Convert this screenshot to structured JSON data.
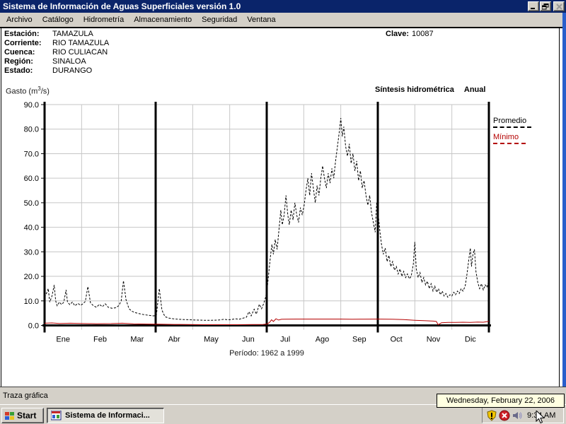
{
  "window": {
    "title": "Sistema de Información de Aguas Superficiales  versión 1.0"
  },
  "menu": {
    "items": [
      {
        "label": "Archivo"
      },
      {
        "label": "Catálogo"
      },
      {
        "label": "Hidrometría"
      },
      {
        "label": "Almacenamiento"
      },
      {
        "label": "Seguridad"
      },
      {
        "label": "Ventana"
      }
    ]
  },
  "station": {
    "fields": [
      {
        "label": "Estación:",
        "value": "TAMAZULA"
      },
      {
        "label": "Corriente:",
        "value": "RIO TAMAZULA"
      },
      {
        "label": "Cuenca:",
        "value": "RIO CULIACAN"
      },
      {
        "label": "Región:",
        "value": "SINALOA"
      },
      {
        "label": "Estado:",
        "value": "DURANGO"
      }
    ],
    "clave_label": "Clave:",
    "clave_value": "10087"
  },
  "chart_header": {
    "unit_prefix": "Gasto (m",
    "unit_sup": "3",
    "unit_suffix": "/s)",
    "synthesis": "Síntesis hidrométrica",
    "period_type": "Anual"
  },
  "legend": {
    "promedio": "Promedio",
    "minimo": "Mínimo"
  },
  "caption": "Período: 1962 a 1999",
  "chart_data": {
    "type": "line",
    "title": "Síntesis hidrométrica Anual",
    "ylabel": "Gasto (m3/s)",
    "ylim": [
      0,
      90
    ],
    "ytick_labels": [
      "0.0",
      "10.0",
      "20.0",
      "30.0",
      "40.0",
      "50.0",
      "60.0",
      "70.0",
      "80.0",
      "90.0"
    ],
    "categories": [
      "Ene",
      "Feb",
      "Mar",
      "Abr",
      "May",
      "Jun",
      "Jul",
      "Ago",
      "Sep",
      "Oct",
      "Nov",
      "Dic"
    ],
    "quarter_separators_after_month": [
      3,
      6,
      9
    ],
    "grid": true,
    "legend_position": "right",
    "colors": {
      "promedio": "#000000",
      "minimo": "#b40000",
      "grid": "#c6c6c6",
      "axis": "#000000"
    },
    "series": [
      {
        "name": "Promedio",
        "style": "dashed",
        "color": "#000000",
        "points": [
          [
            0.0,
            11.5
          ],
          [
            0.05,
            13
          ],
          [
            0.1,
            15
          ],
          [
            0.14,
            9.5
          ],
          [
            0.2,
            12
          ],
          [
            0.26,
            16.5
          ],
          [
            0.3,
            10
          ],
          [
            0.34,
            8
          ],
          [
            0.4,
            9.5
          ],
          [
            0.46,
            8.5
          ],
          [
            0.52,
            9.5
          ],
          [
            0.58,
            14.5
          ],
          [
            0.62,
            9.5
          ],
          [
            0.68,
            8.5
          ],
          [
            0.75,
            9.5
          ],
          [
            0.82,
            8
          ],
          [
            0.9,
            9
          ],
          [
            0.97,
            8.2
          ],
          [
            1.04,
            8.8
          ],
          [
            1.1,
            9.8
          ],
          [
            1.17,
            15.8
          ],
          [
            1.24,
            9.2
          ],
          [
            1.32,
            8
          ],
          [
            1.4,
            7.4
          ],
          [
            1.48,
            8.6
          ],
          [
            1.56,
            7.6
          ],
          [
            1.64,
            8.8
          ],
          [
            1.72,
            7.4
          ],
          [
            1.82,
            7
          ],
          [
            1.92,
            7.2
          ],
          [
            2.0,
            8
          ],
          [
            2.07,
            10
          ],
          [
            2.13,
            18.2
          ],
          [
            2.2,
            10.5
          ],
          [
            2.28,
            6.8
          ],
          [
            2.36,
            5.8
          ],
          [
            2.45,
            5.2
          ],
          [
            2.55,
            4.8
          ],
          [
            2.68,
            4.4
          ],
          [
            2.82,
            4.1
          ],
          [
            2.95,
            3.9
          ],
          [
            3.02,
            4.1
          ],
          [
            3.1,
            15
          ],
          [
            3.17,
            6.2
          ],
          [
            3.25,
            3.6
          ],
          [
            3.35,
            3
          ],
          [
            3.48,
            2.7
          ],
          [
            3.62,
            2.5
          ],
          [
            3.78,
            2.4
          ],
          [
            3.92,
            2.3
          ],
          [
            4.1,
            2.2
          ],
          [
            4.3,
            2.1
          ],
          [
            4.5,
            2.1
          ],
          [
            4.7,
            2.2
          ],
          [
            4.85,
            2.5
          ],
          [
            4.95,
            2.3
          ],
          [
            5.05,
            2.4
          ],
          [
            5.15,
            2.7
          ],
          [
            5.25,
            2.5
          ],
          [
            5.35,
            2.9
          ],
          [
            5.45,
            3.3
          ],
          [
            5.52,
            5.6
          ],
          [
            5.58,
            3.9
          ],
          [
            5.66,
            6.6
          ],
          [
            5.72,
            4.6
          ],
          [
            5.8,
            8.6
          ],
          [
            5.86,
            6.8
          ],
          [
            5.92,
            9
          ],
          [
            5.97,
            11.5
          ],
          [
            6.02,
            16
          ],
          [
            6.06,
            22
          ],
          [
            6.1,
            28
          ],
          [
            6.14,
            33
          ],
          [
            6.18,
            29
          ],
          [
            6.23,
            35
          ],
          [
            6.28,
            31
          ],
          [
            6.33,
            39
          ],
          [
            6.38,
            47
          ],
          [
            6.42,
            41
          ],
          [
            6.47,
            45
          ],
          [
            6.52,
            53
          ],
          [
            6.57,
            45
          ],
          [
            6.61,
            41
          ],
          [
            6.66,
            47
          ],
          [
            6.71,
            43
          ],
          [
            6.76,
            50
          ],
          [
            6.81,
            45
          ],
          [
            6.86,
            42
          ],
          [
            6.91,
            48
          ],
          [
            6.96,
            45
          ],
          [
            7.01,
            49
          ],
          [
            7.06,
            55
          ],
          [
            7.11,
            60
          ],
          [
            7.16,
            53
          ],
          [
            7.21,
            62
          ],
          [
            7.26,
            56
          ],
          [
            7.31,
            50
          ],
          [
            7.36,
            57
          ],
          [
            7.41,
            53
          ],
          [
            7.46,
            60
          ],
          [
            7.51,
            65
          ],
          [
            7.56,
            60
          ],
          [
            7.61,
            56
          ],
          [
            7.66,
            62
          ],
          [
            7.71,
            58
          ],
          [
            7.76,
            64
          ],
          [
            7.81,
            60
          ],
          [
            7.86,
            67
          ],
          [
            7.91,
            73
          ],
          [
            7.96,
            79
          ],
          [
            8.0,
            84.5
          ],
          [
            8.04,
            77
          ],
          [
            8.08,
            81
          ],
          [
            8.13,
            73
          ],
          [
            8.18,
            69
          ],
          [
            8.23,
            74
          ],
          [
            8.28,
            66
          ],
          [
            8.33,
            70
          ],
          [
            8.38,
            63
          ],
          [
            8.43,
            67
          ],
          [
            8.48,
            59
          ],
          [
            8.53,
            63
          ],
          [
            8.58,
            56
          ],
          [
            8.63,
            59
          ],
          [
            8.68,
            53
          ],
          [
            8.73,
            49
          ],
          [
            8.78,
            53
          ],
          [
            8.83,
            46
          ],
          [
            8.88,
            42
          ],
          [
            8.93,
            38
          ],
          [
            8.97,
            50
          ],
          [
            9.02,
            44
          ],
          [
            9.06,
            38
          ],
          [
            9.1,
            33
          ],
          [
            9.15,
            29
          ],
          [
            9.2,
            31.5
          ],
          [
            9.25,
            26
          ],
          [
            9.3,
            28.5
          ],
          [
            9.35,
            24
          ],
          [
            9.4,
            26
          ],
          [
            9.45,
            22.5
          ],
          [
            9.5,
            24
          ],
          [
            9.55,
            21
          ],
          [
            9.6,
            23
          ],
          [
            9.65,
            20
          ],
          [
            9.7,
            22
          ],
          [
            9.75,
            19.5
          ],
          [
            9.8,
            21
          ],
          [
            9.85,
            19
          ],
          [
            9.9,
            20
          ],
          [
            9.96,
            25
          ],
          [
            10.0,
            34
          ],
          [
            10.04,
            23
          ],
          [
            10.09,
            19.5
          ],
          [
            10.14,
            21.5
          ],
          [
            10.19,
            17.5
          ],
          [
            10.24,
            19.5
          ],
          [
            10.29,
            16.5
          ],
          [
            10.34,
            18
          ],
          [
            10.39,
            15
          ],
          [
            10.44,
            17
          ],
          [
            10.49,
            14
          ],
          [
            10.54,
            16
          ],
          [
            10.59,
            13.5
          ],
          [
            10.64,
            15
          ],
          [
            10.69,
            12.5
          ],
          [
            10.74,
            14
          ],
          [
            10.79,
            12
          ],
          [
            10.84,
            13
          ],
          [
            10.89,
            11.5
          ],
          [
            10.95,
            12.5
          ],
          [
            11.0,
            12
          ],
          [
            11.05,
            13.5
          ],
          [
            11.1,
            12.5
          ],
          [
            11.15,
            14
          ],
          [
            11.2,
            13
          ],
          [
            11.25,
            15
          ],
          [
            11.3,
            14
          ],
          [
            11.36,
            16
          ],
          [
            11.41,
            21
          ],
          [
            11.46,
            27
          ],
          [
            11.5,
            31.5
          ],
          [
            11.53,
            24
          ],
          [
            11.57,
            29
          ],
          [
            11.61,
            31
          ],
          [
            11.65,
            22
          ],
          [
            11.7,
            17.5
          ],
          [
            11.75,
            15
          ],
          [
            11.8,
            17
          ],
          [
            11.85,
            14.5
          ],
          [
            11.9,
            16.5
          ],
          [
            11.95,
            15.5
          ],
          [
            12.0,
            18.5
          ]
        ]
      },
      {
        "name": "Mínimo",
        "style": "solid",
        "color": "#b40000",
        "points": [
          [
            0,
            0.9
          ],
          [
            0.2,
            1.0
          ],
          [
            0.4,
            0.8
          ],
          [
            0.7,
            0.9
          ],
          [
            1.0,
            0.8
          ],
          [
            1.4,
            0.7
          ],
          [
            1.8,
            0.75
          ],
          [
            2.1,
            0.9
          ],
          [
            2.4,
            0.65
          ],
          [
            2.8,
            0.55
          ],
          [
            3.1,
            0.5
          ],
          [
            3.5,
            0.4
          ],
          [
            3.9,
            0.35
          ],
          [
            4.3,
            0.3
          ],
          [
            4.8,
            0.3
          ],
          [
            5.2,
            0.3
          ],
          [
            5.6,
            0.35
          ],
          [
            5.9,
            0.4
          ],
          [
            6.02,
            0.6
          ],
          [
            6.08,
            1.3
          ],
          [
            6.13,
            2.3
          ],
          [
            6.18,
            1.6
          ],
          [
            6.25,
            2.7
          ],
          [
            6.32,
            2.2
          ],
          [
            6.4,
            2.5
          ],
          [
            6.55,
            2.55
          ],
          [
            6.8,
            2.6
          ],
          [
            7.2,
            2.6
          ],
          [
            7.6,
            2.6
          ],
          [
            8.0,
            2.6
          ],
          [
            8.3,
            2.5
          ],
          [
            8.6,
            2.55
          ],
          [
            9.0,
            2.6
          ],
          [
            9.4,
            2.5
          ],
          [
            9.7,
            2.35
          ],
          [
            10.0,
            2.1
          ],
          [
            10.3,
            1.9
          ],
          [
            10.5,
            1.75
          ],
          [
            10.58,
            1.6
          ],
          [
            10.63,
            0.3
          ],
          [
            10.72,
            1.1
          ],
          [
            10.9,
            1.25
          ],
          [
            11.1,
            1.2
          ],
          [
            11.3,
            1.3
          ],
          [
            11.5,
            1.25
          ],
          [
            11.7,
            1.35
          ],
          [
            11.85,
            1.3
          ],
          [
            12.0,
            1.7
          ]
        ]
      }
    ],
    "caption": "Período: 1962 a 1999"
  },
  "status_bar": {
    "text": "Traza gráfica"
  },
  "taskbar": {
    "start_label": "Start",
    "task_label": "Sistema de Informaci...",
    "tray_icon_names": [
      "security-shield-yellow-icon",
      "security-shield-red-icon",
      "volume-icon"
    ],
    "time": "9:34 AM",
    "date_tooltip": "Wednesday, February 22, 2006"
  }
}
